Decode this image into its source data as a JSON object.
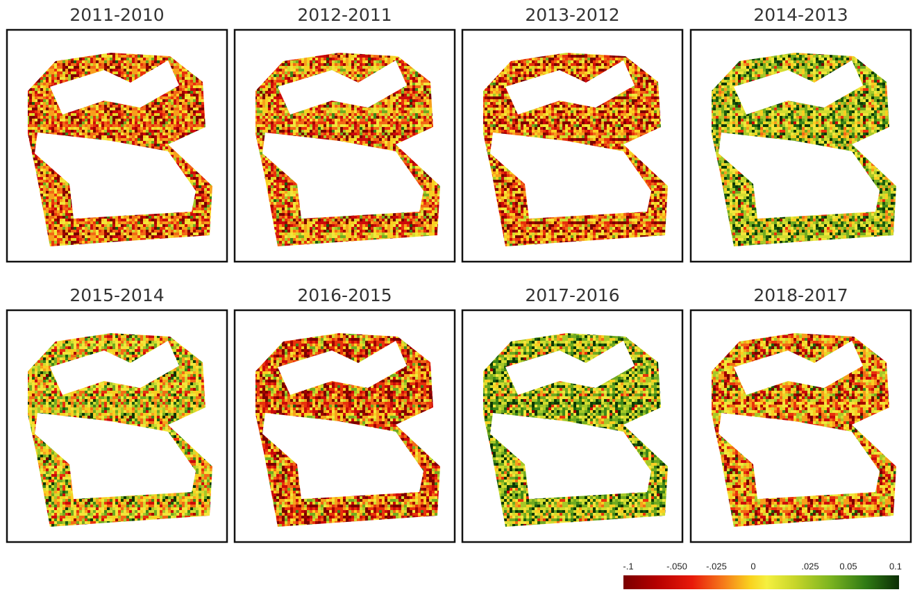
{
  "panels": [
    {
      "title": "2011-2010"
    },
    {
      "title": "2012-2011"
    },
    {
      "title": "2013-2012"
    },
    {
      "title": "2014-2013"
    },
    {
      "title": "2015-2014"
    },
    {
      "title": "2016-2015"
    },
    {
      "title": "2017-2016"
    },
    {
      "title": "2018-2017"
    }
  ],
  "legend": {
    "labels": [
      "-.1",
      "-.050",
      "-.025",
      "0",
      ".025",
      "0.05",
      "0.1"
    ]
  }
}
